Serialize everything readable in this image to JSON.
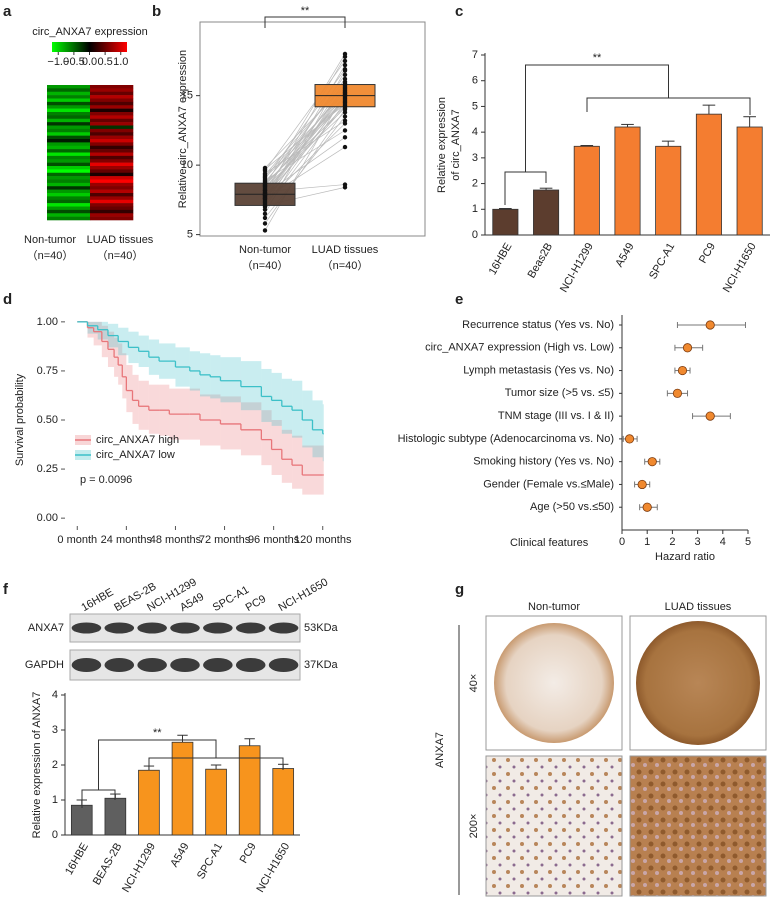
{
  "chart_data": [
    {
      "type": "heatmap",
      "panel": "a",
      "title": "circ_ANXA7 expression",
      "colorbar_lim": [
        -1.2,
        1.2
      ],
      "colorbar_ticks": [
        {
          "value": -1,
          "label": "−1.0"
        },
        {
          "value": -0.5,
          "label": "−0.5"
        },
        {
          "value": 0,
          "label": "0.0"
        },
        0.5,
        {
          "value": 1,
          "label": "1.0"
        }
      ],
      "categories": [
        "Non-tumor",
        "LUAD tissues"
      ],
      "sublabels": [
        "（n=40）",
        "（n=40）"
      ],
      "values": [
        [
          -0.6,
          -0.4,
          -0.7,
          -0.5,
          -0.8,
          -0.3,
          -0.6,
          -0.9,
          -0.5,
          -0.4,
          -0.7,
          -0.2,
          -0.6,
          -0.5,
          -0.8,
          -0.3,
          -0.1,
          -0.6,
          -0.7,
          -0.4,
          -0.9,
          -0.5,
          -0.6,
          -0.3,
          -0.8,
          -1.0,
          -0.4,
          -0.6,
          -0.5,
          -0.7,
          -0.2,
          -0.6,
          -0.8,
          -0.5,
          -0.4,
          -0.9,
          -0.6,
          -0.3,
          -0.7,
          -0.5
        ],
        [
          0.5,
          0.6,
          0.4,
          0.7,
          0.5,
          0.3,
          0.6,
          0.1,
          0.5,
          0.7,
          0.4,
          0.6,
          -0.2,
          0.5,
          0.3,
          0.6,
          0.8,
          0.5,
          0.2,
          0.4,
          0.7,
          0.3,
          0.5,
          0.9,
          0.6,
          0.4,
          0.1,
          0.8,
          1.0,
          0.6,
          0.5,
          0.7,
          0.3,
          0.6,
          0.9,
          0.5,
          0.4,
          0.2,
          0.6,
          0.5
        ]
      ]
    },
    {
      "type": "paired_box",
      "panel": "b",
      "ylabel": "Relative circ_ANXA7 expression",
      "significance": "**",
      "categories": [
        "Non-tumor",
        "LUAD tissues"
      ],
      "sublabels": [
        "（n=40）",
        "（n=40）"
      ],
      "colors": [
        "#5b4236",
        "#f0892f"
      ],
      "ylim": [
        4.9,
        20.3
      ],
      "yticks": [
        5,
        10,
        15
      ],
      "values": [
        [
          5.3,
          5.8,
          6.2,
          6.5,
          6.8,
          7.0,
          7.1,
          7.2,
          7.3,
          7.4,
          7.5,
          7.6,
          7.6,
          7.7,
          7.8,
          7.8,
          7.9,
          7.9,
          8.0,
          8.0,
          8.1,
          8.2,
          8.2,
          8.3,
          8.4,
          8.5,
          8.5,
          8.6,
          8.7,
          8.7,
          8.8,
          8.9,
          9.0,
          9.1,
          9.2,
          9.3,
          9.4,
          9.6,
          9.7,
          9.8
        ],
        [
          15.2,
          14.0,
          13.5,
          16.8,
          14.5,
          15.0,
          8.4,
          15.8,
          13.0,
          17.2,
          14.8,
          15.5,
          11.3,
          16.0,
          14.2,
          15.3,
          12.0,
          17.8,
          14.9,
          15.1,
          8.6,
          16.5,
          14.3,
          15.6,
          13.8,
          18.0,
          15.0,
          14.6,
          16.2,
          14.1,
          15.4,
          12.5,
          16.9,
          14.7,
          15.2,
          15.9,
          13.2,
          17.5,
          14.4,
          15.7
        ]
      ],
      "boxes": [
        {
          "q1": 7.1,
          "median": 7.9,
          "q3": 8.7
        },
        {
          "q1": 14.2,
          "median": 15.0,
          "q3": 15.8
        }
      ]
    },
    {
      "type": "bar",
      "panel": "c",
      "ylabel": [
        "Relative expression",
        "of circ_ANXA7"
      ],
      "significance": "**",
      "categories": [
        "16HBE",
        "Beas2B",
        "NCI-H1299",
        "A549",
        "SPC-A1",
        "PC9",
        "NCI-H1650"
      ],
      "values": [
        1.0,
        1.75,
        3.45,
        4.2,
        3.45,
        4.7,
        4.2
      ],
      "errors": [
        0.03,
        0.07,
        0.03,
        0.1,
        0.2,
        0.35,
        0.4
      ],
      "colors": [
        "#5c3d2e",
        "#5c3d2e",
        "#f47d30",
        "#f47d30",
        "#f47d30",
        "#f47d30",
        "#f47d30"
      ],
      "ylim": [
        0,
        7
      ],
      "yticks": [
        0,
        1,
        2,
        3,
        4,
        5,
        6,
        7
      ]
    },
    {
      "type": "survival",
      "panel": "d",
      "ylabel": "Survival probability",
      "annotation": "p = 0.0096",
      "xlim": [
        -6,
        126
      ],
      "xticks": [
        {
          "value": 0,
          "label": "0 month"
        },
        {
          "value": 24,
          "label": "24 months"
        },
        {
          "value": 48,
          "label": "48 months"
        },
        {
          "value": 72,
          "label": "72 months"
        },
        {
          "value": 96,
          "label": "96 months"
        },
        {
          "value": 120,
          "label": "120 months"
        }
      ],
      "ylim": [
        -0.04,
        1.04
      ],
      "yticks": [
        {
          "value": 0,
          "label": "0.00"
        },
        {
          "value": 0.25,
          "label": "0.25"
        },
        {
          "value": 0.5,
          "label": "0.50"
        },
        {
          "value": 0.75,
          "label": "0.75"
        },
        {
          "value": 1,
          "label": "1.00"
        }
      ],
      "series": [
        {
          "name": "circ_ANXA7 high",
          "color": "#e8767a",
          "x": [
            0,
            5,
            8,
            12,
            15,
            18,
            20,
            22,
            24,
            27,
            30,
            35,
            40,
            45,
            55,
            60,
            70,
            80,
            90,
            95,
            100,
            105,
            110,
            120
          ],
          "values": [
            1,
            0.97,
            0.95,
            0.9,
            0.86,
            0.82,
            0.78,
            0.72,
            0.65,
            0.6,
            0.57,
            0.55,
            0.55,
            0.53,
            0.53,
            0.5,
            0.48,
            0.45,
            0.4,
            0.35,
            0.3,
            0.27,
            0.22,
            0.22
          ],
          "lower": [
            1,
            0.92,
            0.88,
            0.82,
            0.77,
            0.72,
            0.68,
            0.61,
            0.54,
            0.48,
            0.45,
            0.43,
            0.42,
            0.4,
            0.4,
            0.37,
            0.35,
            0.32,
            0.27,
            0.22,
            0.18,
            0.15,
            0.12,
            0.12
          ],
          "upper": [
            1,
            1,
            1,
            0.98,
            0.95,
            0.92,
            0.89,
            0.84,
            0.78,
            0.73,
            0.7,
            0.68,
            0.68,
            0.66,
            0.66,
            0.63,
            0.62,
            0.59,
            0.55,
            0.5,
            0.45,
            0.42,
            0.37,
            0.37
          ]
        },
        {
          "name": "circ_ANXA7 low",
          "color": "#3cc0c8",
          "x": [
            0,
            5,
            10,
            15,
            20,
            25,
            30,
            35,
            40,
            48,
            55,
            60,
            65,
            70,
            80,
            90,
            95,
            100,
            105,
            110,
            115,
            120
          ],
          "values": [
            1,
            0.98,
            0.96,
            0.93,
            0.9,
            0.87,
            0.85,
            0.82,
            0.8,
            0.77,
            0.75,
            0.73,
            0.72,
            0.7,
            0.67,
            0.62,
            0.6,
            0.57,
            0.55,
            0.5,
            0.45,
            0.43
          ],
          "lower": [
            1,
            0.94,
            0.91,
            0.87,
            0.83,
            0.79,
            0.77,
            0.73,
            0.71,
            0.67,
            0.65,
            0.62,
            0.61,
            0.59,
            0.55,
            0.49,
            0.47,
            0.43,
            0.41,
            0.36,
            0.31,
            0.29
          ],
          "upper": [
            1,
            1,
            1,
            0.99,
            0.97,
            0.95,
            0.93,
            0.91,
            0.89,
            0.87,
            0.85,
            0.84,
            0.83,
            0.82,
            0.8,
            0.76,
            0.74,
            0.71,
            0.7,
            0.65,
            0.6,
            0.58
          ]
        }
      ]
    },
    {
      "type": "forest",
      "panel": "e",
      "header": "Clinical features",
      "xlabel": "Hazard ratio",
      "color": "#f0892f",
      "categories": [
        "Recurrence status (Yes vs. No)",
        "circ_ANXA7 expression (High vs. Low)",
        "Lymph metastasis (Yes vs. No)",
        "Tumor size (>5 vs. ≤5)",
        "TNM stage (III vs. I & II)",
        "Histologic subtype (Adenocarcinoma vs. No)",
        "Smoking history (Yes vs. No)",
        "Gender (Female vs.≤Male)",
        "Age (>50 vs.≤50)"
      ],
      "values": [
        3.5,
        2.6,
        2.4,
        2.2,
        3.5,
        0.3,
        1.2,
        0.8,
        1.0
      ],
      "lower": [
        2.2,
        2.1,
        2.1,
        1.8,
        2.8,
        0.05,
        0.9,
        0.5,
        0.7
      ],
      "upper": [
        4.9,
        3.2,
        2.7,
        2.6,
        4.3,
        0.6,
        1.5,
        1.1,
        1.4
      ],
      "xlim": [
        0,
        5
      ],
      "xticks": [
        0,
        1,
        2,
        3,
        4,
        5
      ]
    },
    {
      "type": "bar",
      "panel": "f",
      "ylabel": [
        "Relative expression of ANXA7"
      ],
      "significance": "**",
      "categories": [
        "16HBE",
        "BEAS-2B",
        "NCI-H1299",
        "A549",
        "SPC-A1",
        "PC9",
        "NCI-H1650"
      ],
      "values": [
        0.85,
        1.05,
        1.85,
        2.65,
        1.88,
        2.55,
        1.9
      ],
      "errors": [
        0.15,
        0.12,
        0.12,
        0.2,
        0.12,
        0.2,
        0.12
      ],
      "colors": [
        "#5f5f5f",
        "#5f5f5f",
        "#f7941d",
        "#f7941d",
        "#f7941d",
        "#f7941d",
        "#f7941d"
      ],
      "ylim": [
        0,
        4
      ],
      "yticks": [
        0,
        1,
        2,
        3,
        4
      ]
    }
  ],
  "blot": {
    "lanes": [
      "16HBE",
      "BEAS-2B",
      "NCI-H1299",
      "A549",
      "SPC-A1",
      "PC9",
      "NCI-H1650"
    ],
    "rows": [
      {
        "name": "ANXA7",
        "size": "53KDa"
      },
      {
        "name": "GAPDH",
        "size": "37KDa"
      }
    ]
  },
  "ihc": {
    "panel": "g",
    "columns": [
      "Non-tumor",
      "LUAD tissues"
    ],
    "rows": [
      "40×",
      "200×"
    ],
    "stain": "ANXA7"
  }
}
